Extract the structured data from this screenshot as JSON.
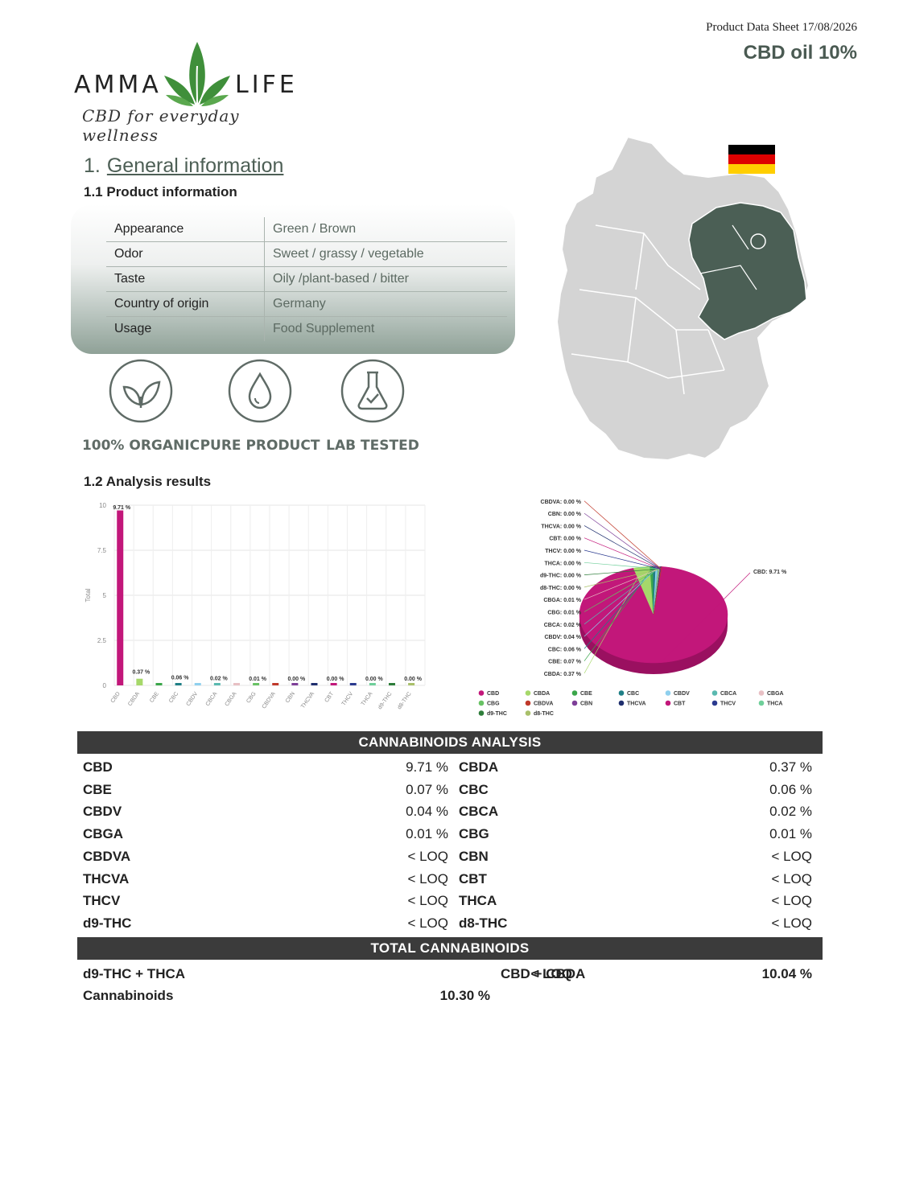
{
  "header": {
    "date_line": "Product Data Sheet 17/08/2026",
    "product": "CBD oil 10%"
  },
  "brand": {
    "left": "AMMA",
    "right": "LIFE",
    "tagline": "CBD for everyday wellness",
    "accent": "#3f8f3a"
  },
  "section1": {
    "number": "1.",
    "title": "General information"
  },
  "product_info": {
    "heading": "1.1  Product information",
    "rows": [
      {
        "key": "Appearance",
        "value": "Green / Brown"
      },
      {
        "key": "Odor",
        "value": "Sweet / grassy / vegetable"
      },
      {
        "key": "Taste",
        "value": "Oily /plant-based / bitter"
      },
      {
        "key": "Country of origin",
        "value": "Germany"
      },
      {
        "key": "Usage",
        "value": "Food Supplement"
      }
    ]
  },
  "badges": [
    {
      "label": "100% ORGANIC",
      "icon": "leaf-icon"
    },
    {
      "label": "PURE PRODUCT",
      "icon": "droplet-icon"
    },
    {
      "label": "LAB TESTED",
      "icon": "flask-icon"
    }
  ],
  "map": {
    "region_color": "#4b5f55",
    "land_color": "#d4d4d4",
    "flag_colors": [
      "#000000",
      "#dd0000",
      "#ffce00"
    ]
  },
  "analysis": {
    "heading": "1.2  Analysis results"
  },
  "chart_data": [
    {
      "type": "bar",
      "ylabel": "Total",
      "ylim": [
        0,
        10
      ],
      "yticks": [
        "0",
        "2.5",
        "5",
        "7.5",
        "10"
      ],
      "grid": true,
      "categories": [
        "CBD",
        "CBDA",
        "CBE",
        "CBC",
        "CBDV",
        "CBCA",
        "CBGA",
        "CBG",
        "CBDVA",
        "CBN",
        "THCVA",
        "CBT",
        "THCV",
        "THCA",
        "d9-THC",
        "d8-THC"
      ],
      "values": [
        9.71,
        0.37,
        0.07,
        0.06,
        0.04,
        0.02,
        0.01,
        0.01,
        0,
        0,
        0,
        0,
        0,
        0,
        0,
        0
      ],
      "colors": [
        "#c2177a",
        "#a6d86a",
        "#3aa64a",
        "#1f7f86",
        "#8fd0ee",
        "#5ab9b0",
        "#e8c0c4",
        "#68c264",
        "#c0392b",
        "#7e3f98",
        "#1f2f6e",
        "#c2177a",
        "#2b3a8f",
        "#6fcf9a",
        "#2e7d3a",
        "#a9c06a"
      ],
      "data_labels": [
        {
          "text": "9.71 %",
          "index": 0
        },
        {
          "text": "0.37 %",
          "index": 1
        },
        {
          "text": "0.06 %",
          "index": 3
        },
        {
          "text": "0.02 %",
          "index": 5
        },
        {
          "text": "0.01 %",
          "index": 7
        },
        {
          "text": "0.00 %",
          "index": 9
        },
        {
          "text": "0.00 %",
          "index": 11
        },
        {
          "text": "0.00 %",
          "index": 13
        },
        {
          "text": "0.00 %",
          "index": 15
        }
      ]
    },
    {
      "type": "pie",
      "slices": [
        {
          "label": "CBD",
          "value": 9.71,
          "text": "CBD: 9.71 %",
          "color": "#c2177a"
        },
        {
          "label": "CBDA",
          "value": 0.37,
          "text": "CBDA: 0.37 %",
          "color": "#a6d86a"
        },
        {
          "label": "CBE",
          "value": 0.07,
          "text": "CBE: 0.07 %",
          "color": "#3aa64a"
        },
        {
          "label": "CBC",
          "value": 0.06,
          "text": "CBC: 0.06 %",
          "color": "#1f7f86"
        },
        {
          "label": "CBDV",
          "value": 0.04,
          "text": "CBDV: 0.04 %",
          "color": "#8fd0ee"
        },
        {
          "label": "CBCA",
          "value": 0.02,
          "text": "CBCA: 0.02 %",
          "color": "#5ab9b0"
        },
        {
          "label": "CBG",
          "value": 0.01,
          "text": "CBG: 0.01 %",
          "color": "#68c264"
        },
        {
          "label": "CBGA",
          "value": 0.01,
          "text": "CBGA: 0.01 %",
          "color": "#e8c0c4"
        },
        {
          "label": "d8-THC",
          "value": 0,
          "text": "d8-THC: 0.00 %",
          "color": "#a9c06a"
        },
        {
          "label": "d9-THC",
          "value": 0,
          "text": "d9-THC: 0.00 %",
          "color": "#2e7d3a"
        },
        {
          "label": "THCA",
          "value": 0,
          "text": "THCA: 0.00 %",
          "color": "#6fcf9a"
        },
        {
          "label": "THCV",
          "value": 0,
          "text": "THCV: 0.00 %",
          "color": "#2b3a8f"
        },
        {
          "label": "CBT",
          "value": 0,
          "text": "CBT: 0.00 %",
          "color": "#c2177a"
        },
        {
          "label": "THCVA",
          "value": 0,
          "text": "THCVA: 0.00 %",
          "color": "#1f2f6e"
        },
        {
          "label": "CBN",
          "value": 0,
          "text": "CBN: 0.00 %",
          "color": "#7e3f98"
        },
        {
          "label": "CBDVA",
          "value": 0,
          "text": "CBDVA: 0.00 %",
          "color": "#c0392b"
        }
      ],
      "legend": [
        "CBD",
        "CBDA",
        "CBE",
        "CBC",
        "CBDV",
        "CBCA",
        "CBGA",
        "CBG",
        "CBDVA",
        "CBN",
        "THCVA",
        "CBT",
        "THCV",
        "THCA",
        "d9-THC",
        "d8-THC"
      ],
      "legend_position": "bottom"
    }
  ],
  "cannabinoids": {
    "title": "CANNABINOIDS ANALYSIS",
    "rows": [
      [
        "CBD",
        "9.71 %",
        "CBDA",
        "0.37 %"
      ],
      [
        "CBE",
        "0.07 %",
        "CBC",
        "0.06 %"
      ],
      [
        "CBDV",
        "0.04 %",
        "CBCA",
        "0.02 %"
      ],
      [
        "CBGA",
        "0.01 %",
        "CBG",
        "0.01 %"
      ],
      [
        "CBDVA",
        "< LOQ",
        "CBN",
        "< LOQ"
      ],
      [
        "THCVA",
        "< LOQ",
        "CBT",
        "< LOQ"
      ],
      [
        "THCV",
        "< LOQ",
        "THCA",
        "< LOQ"
      ],
      [
        "d9-THC",
        "< LOQ",
        "d8-THC",
        "< LOQ"
      ]
    ]
  },
  "totals": {
    "title": "TOTAL CANNABINOIDS",
    "thc_label": "d9-THC + THCA",
    "thc_value": "< LOQ",
    "cbd_label": "CBD + CBDA",
    "cbd_value": "10.04 %",
    "total_label": "Cannabinoids",
    "total_value": "10.30 %"
  }
}
